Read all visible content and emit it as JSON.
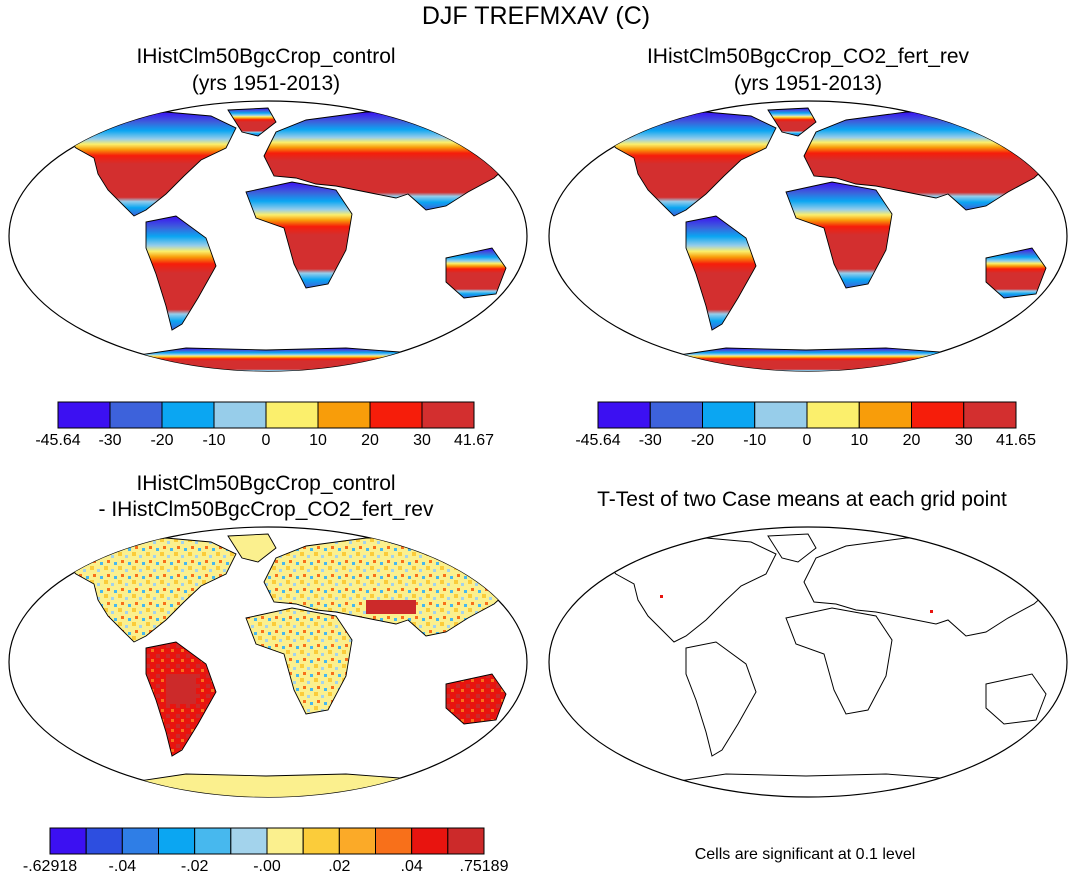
{
  "title": "DJF TREFMXAV (C)",
  "panels": [
    {
      "id": "control",
      "title_line1": "IHistClm50BgcCrop_control",
      "title_line2": "(yrs 1951-2013)",
      "colorbar": {
        "colors": [
          "#3c10f2",
          "#3d62db",
          "#0ba6f2",
          "#97cdea",
          "#fbef6c",
          "#f89d0a",
          "#f61d0a",
          "#d32f2f"
        ],
        "labels": [
          "-45.64",
          "-30",
          "-20",
          "-10",
          "0",
          "10",
          "20",
          "30",
          "41.67"
        ]
      }
    },
    {
      "id": "co2_fert_rev",
      "title_line1": "IHistClm50BgcCrop_CO2_fert_rev",
      "title_line2": "(yrs 1951-2013)",
      "colorbar": {
        "colors": [
          "#3c10f2",
          "#3d62db",
          "#0ba6f2",
          "#97cdea",
          "#fbef6c",
          "#f89d0a",
          "#f61d0a",
          "#d32f2f"
        ],
        "labels": [
          "-45.64",
          "-30",
          "-20",
          "-10",
          "0",
          "10",
          "20",
          "30",
          "41.65"
        ]
      }
    },
    {
      "id": "difference",
      "title_line1": "IHistClm50BgcCrop_control",
      "title_line2": "- IHistClm50BgcCrop_CO2_fert_rev",
      "colorbar": {
        "colors": [
          "#3c10f2",
          "#2d4ee0",
          "#2f7ee6",
          "#0ba6f2",
          "#47b8ee",
          "#a3d3ec",
          "#fbf08e",
          "#fbcc3a",
          "#fbaa28",
          "#f8701a",
          "#e8140f",
          "#cc2a2a"
        ],
        "labels": [
          "-.62918",
          "-.04",
          "-.02",
          "-.00",
          ".02",
          ".04",
          ".75189"
        ]
      }
    },
    {
      "id": "ttest",
      "title_line1": "T-Test of two Case means at each grid point",
      "title_line2": "",
      "note": "Cells are significant at 0.1 level"
    }
  ]
}
